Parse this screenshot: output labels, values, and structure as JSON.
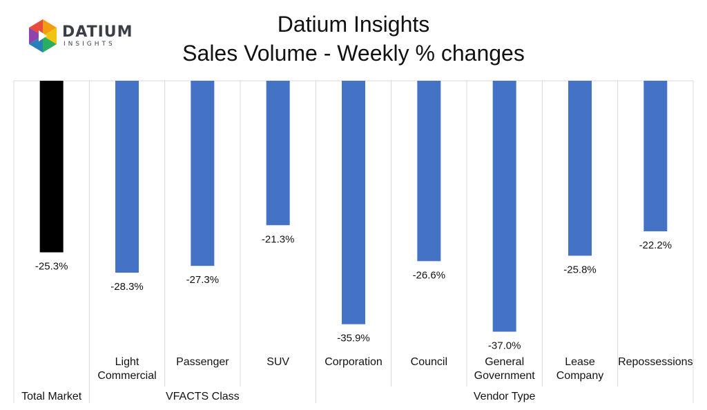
{
  "header": {
    "title": "Datium Insights",
    "subtitle": "Sales Volume - Weekly % changes"
  },
  "logo": {
    "word": "DATIUM",
    "sub": "INSIGHTS"
  },
  "colors": {
    "highlight": "#000000",
    "bar": "#4472c4",
    "grid": "#d9d9d9",
    "text": "#111111"
  },
  "chart_data": {
    "type": "bar",
    "title": "Datium Insights",
    "subtitle": "Sales Volume - Weekly % changes",
    "ylabel": "",
    "xlabel": "",
    "ylim": [
      -40,
      0
    ],
    "grid": true,
    "categories": [
      {
        "lines": [],
        "group": "Total Market",
        "value": -25.3,
        "label": "-25.3%",
        "highlight": true
      },
      {
        "lines": [
          "Light",
          "Commercial"
        ],
        "group": "VFACTS Class",
        "value": -28.3,
        "label": "-28.3%",
        "highlight": false
      },
      {
        "lines": [
          "Passenger"
        ],
        "group": "VFACTS Class",
        "value": -27.3,
        "label": "-27.3%",
        "highlight": false
      },
      {
        "lines": [
          "SUV"
        ],
        "group": "VFACTS Class",
        "value": -21.3,
        "label": "-21.3%",
        "highlight": false
      },
      {
        "lines": [
          "Corporation"
        ],
        "group": "Vendor Type",
        "value": -35.9,
        "label": "-35.9%",
        "highlight": false
      },
      {
        "lines": [
          "Council"
        ],
        "group": "Vendor Type",
        "value": -26.6,
        "label": "-26.6%",
        "highlight": false
      },
      {
        "lines": [
          "General",
          "Government"
        ],
        "group": "Vendor Type",
        "value": -37.0,
        "label": "-37.0%",
        "highlight": false
      },
      {
        "lines": [
          "Lease",
          "Company"
        ],
        "group": "Vendor Type",
        "value": -25.8,
        "label": "-25.8%",
        "highlight": false
      },
      {
        "lines": [
          "Repossessions"
        ],
        "group": "Vendor Type",
        "value": -22.2,
        "label": "-22.2%",
        "highlight": false
      }
    ],
    "groups": [
      "Total Market",
      "VFACTS Class",
      "Vendor Type"
    ]
  }
}
